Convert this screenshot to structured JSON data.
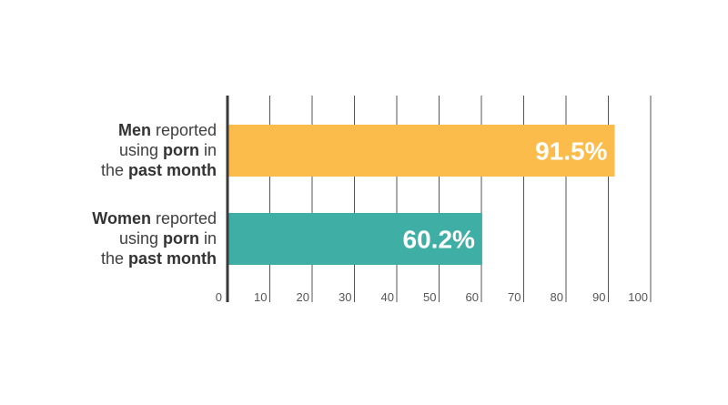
{
  "chart_data": {
    "type": "bar",
    "orientation": "horizontal",
    "categories": [
      [
        {
          "text": "Men",
          "bold": true
        },
        {
          "text": " reported",
          "bold": false
        },
        {
          "break": true
        },
        {
          "text": "using ",
          "bold": false
        },
        {
          "text": "porn",
          "bold": true
        },
        {
          "text": " in",
          "bold": false
        },
        {
          "break": true
        },
        {
          "text": "the ",
          "bold": false
        },
        {
          "text": "past month",
          "bold": true
        }
      ],
      [
        {
          "text": "Women",
          "bold": true
        },
        {
          "text": " reported",
          "bold": false
        },
        {
          "break": true
        },
        {
          "text": "using ",
          "bold": false
        },
        {
          "text": "porn",
          "bold": true
        },
        {
          "text": " in",
          "bold": false
        },
        {
          "break": true
        },
        {
          "text": "the ",
          "bold": false
        },
        {
          "text": "past month",
          "bold": true
        }
      ]
    ],
    "values": [
      91.5,
      60.2
    ],
    "value_labels": [
      "91.5%",
      "60.2%"
    ],
    "colors": [
      "#fbbc4b",
      "#3fafa6"
    ],
    "xlim": [
      0,
      100
    ],
    "xticks": [
      0,
      10,
      20,
      30,
      40,
      50,
      60,
      70,
      80,
      90,
      100
    ],
    "grid": true,
    "gridline_color": "#555555",
    "axis_color": "#3a3a3a"
  }
}
